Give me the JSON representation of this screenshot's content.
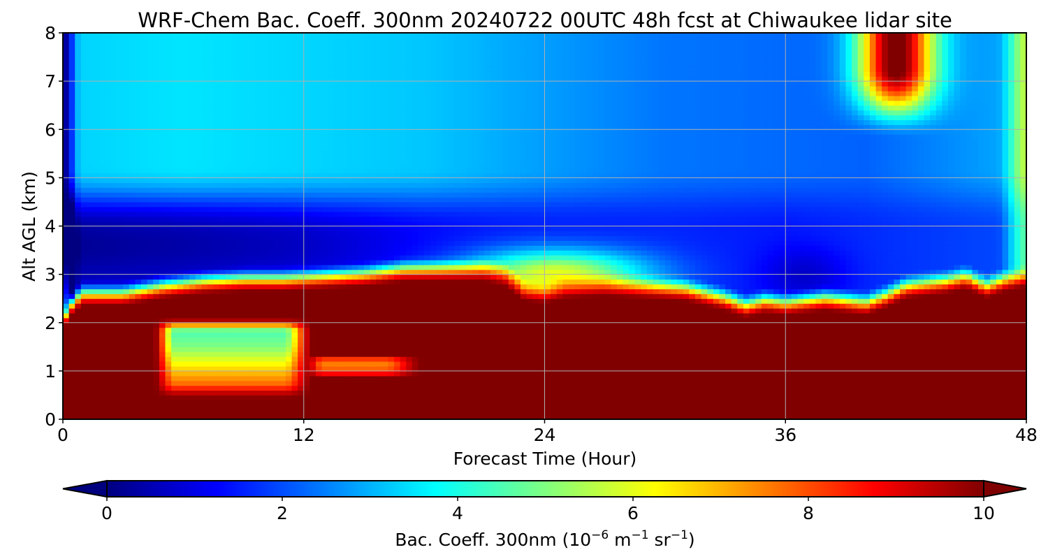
{
  "chart_data": {
    "type": "heatmap",
    "title": "WRF-Chem Bac. Coeff. 300nm  20240722 00UTC 48h fcst at Chiwaukee lidar site",
    "xlabel": "Forecast Time (Hour)",
    "ylabel": "Alt AGL (km)",
    "xlim": [
      0,
      48
    ],
    "ylim": [
      0,
      8
    ],
    "x_ticks": [
      "0",
      "12",
      "24",
      "36",
      "48"
    ],
    "y_ticks": [
      "0",
      "1",
      "2",
      "3",
      "4",
      "5",
      "6",
      "7",
      "8"
    ],
    "grid": true,
    "colormap": "jet",
    "colorbar": {
      "orientation": "horizontal",
      "placement": "bottom",
      "extend": "both",
      "range": [
        0,
        10
      ],
      "ticks": [
        "0",
        "2",
        "4",
        "6",
        "8",
        "10"
      ],
      "label_text": "Bac. Coeff. 300nm ",
      "label_unit_open": "(10",
      "label_exp_1": "−6",
      "label_unit_mid": " m",
      "label_exp_2": "−1",
      "label_unit_sr": " sr",
      "label_exp_3": "−1",
      "label_unit_close": ")"
    },
    "x_hours": [
      0,
      0.5,
      1,
      3,
      5,
      7,
      9,
      11,
      13,
      15,
      17,
      19,
      21,
      22,
      23,
      24,
      25,
      27,
      29,
      31,
      33,
      34,
      35,
      36,
      37,
      38,
      39,
      40,
      41,
      42,
      43,
      44,
      45,
      46,
      47,
      48
    ],
    "y_km": [
      0,
      0.25,
      0.5,
      0.75,
      1,
      1.25,
      1.5,
      1.75,
      2,
      2.25,
      2.5,
      2.75,
      3,
      3.25,
      3.5,
      3.75,
      4,
      4.5,
      5,
      5.5,
      6,
      6.5,
      7,
      7.5,
      8
    ],
    "layers": {
      "boundary_top_km": [
        1.8,
        2.2,
        2.35,
        2.35,
        2.5,
        2.6,
        2.65,
        2.65,
        2.7,
        2.75,
        2.85,
        2.85,
        2.85,
        2.75,
        2.45,
        2.4,
        2.5,
        2.55,
        2.5,
        2.45,
        2.25,
        2.1,
        2.2,
        2.15,
        2.2,
        2.25,
        2.2,
        2.15,
        2.3,
        2.5,
        2.55,
        2.6,
        2.7,
        2.5,
        2.65,
        2.75
      ],
      "boundary_value": 10,
      "surface_value_profile_hour_0": [
        10,
        10,
        10,
        10,
        10,
        10,
        10,
        10,
        10,
        5,
        3,
        2,
        1.2,
        0.8,
        0.5,
        0.4,
        0.3,
        0.2,
        0.2,
        0.2,
        0.2,
        0.2,
        0.2,
        0.2,
        0.2
      ],
      "pocket_1": {
        "hour_range": [
          4.5,
          12.5
        ],
        "km_range": [
          0.4,
          2.1
        ],
        "values_km": [
          0.5,
          1.0,
          1.5,
          2.0
        ],
        "values": [
          8.5,
          6.8,
          5.0,
          4.2
        ]
      },
      "pocket_2": {
        "hour_range": [
          12,
          18
        ],
        "km_range": [
          0.9,
          1.35
        ],
        "value": 7.5
      },
      "aloft_value_km_4_to_5_at_hour_6": 1.0,
      "upper_value_km_6_to_8_at_hour_6": 3.5,
      "upper_value_km_6_to_8_at_hour_30": 2.5,
      "mid_value_km_3_to_6_at_hour_30": 1.6,
      "hump_near_hour_24": {
        "km_range": [
          2.5,
          3.6
        ],
        "value": 6.0
      },
      "hump_near_hour_37": {
        "km_range": [
          2.6,
          3.4
        ],
        "value": 1.2
      },
      "plume_near_hour_42": {
        "hour_range": [
          39.5,
          44
        ],
        "km_range": [
          6.5,
          8
        ],
        "value": 10
      },
      "right_edge_hour_48": {
        "km_range": [
          2.7,
          8
        ],
        "value": 4.5
      }
    }
  }
}
